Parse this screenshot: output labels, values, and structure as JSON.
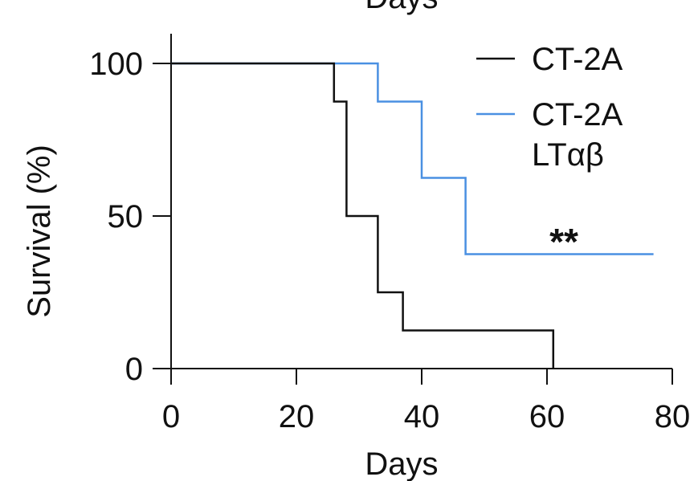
{
  "chart_data": {
    "type": "line",
    "title": "",
    "top_clipped_label": "Days",
    "xlabel": "Days",
    "ylabel": "Survival (%)",
    "xlim": [
      0,
      80
    ],
    "ylim": [
      0,
      100
    ],
    "x_ticks": [
      0,
      20,
      40,
      60,
      80
    ],
    "x_tick_labels": [
      "0",
      "20",
      "40",
      "60",
      "80"
    ],
    "y_ticks": [
      0,
      50,
      100
    ],
    "y_tick_labels": [
      "0",
      "50",
      "100"
    ],
    "grid": false,
    "legend_position": "top-right",
    "annotation": "**",
    "series": [
      {
        "name": "CT-2A",
        "name_lines": [
          "CT-2A"
        ],
        "color": "#111111",
        "step": true,
        "x": [
          0,
          26,
          28,
          33,
          37,
          61
        ],
        "y": [
          100,
          87.5,
          50,
          25,
          12.5,
          0
        ]
      },
      {
        "name": "CT-2A LTαβ",
        "name_lines": [
          "CT-2A",
          "LTαβ"
        ],
        "color": "#4a90e2",
        "step": true,
        "x": [
          0,
          33,
          40,
          47,
          77
        ],
        "y": [
          100,
          87.5,
          62.5,
          37.5,
          37.5
        ]
      }
    ]
  }
}
